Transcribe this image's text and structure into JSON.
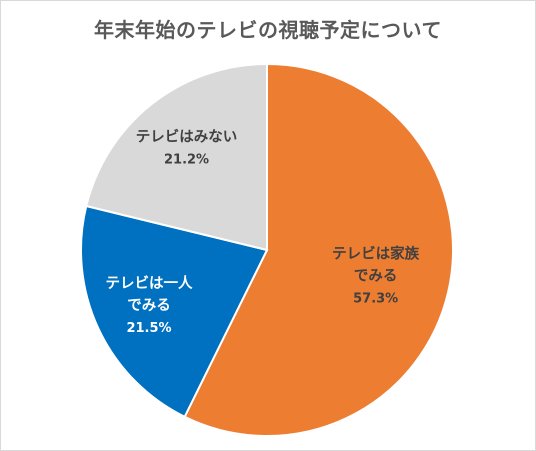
{
  "chart_data": {
    "type": "pie",
    "title": "年末年始のテレビの視聴予定について",
    "slices": [
      {
        "label_lines": [
          "テレビは家族",
          "でみる"
        ],
        "value": 57.3,
        "value_label": "57.3%",
        "color": "#ED7D31",
        "label_color": "#404040"
      },
      {
        "label_lines": [
          "テレビは一人",
          "でみる"
        ],
        "value": 21.5,
        "value_label": "21.5%",
        "color": "#0070C0",
        "label_color": "#ffffff"
      },
      {
        "label_lines": [
          "テレビはみない"
        ],
        "value": 21.2,
        "value_label": "21.2%",
        "color": "#D9D9D9",
        "label_color": "#404040"
      }
    ],
    "start": "12-o'clock",
    "direction": "clockwise",
    "legend": "none",
    "data_labels": "inside"
  }
}
